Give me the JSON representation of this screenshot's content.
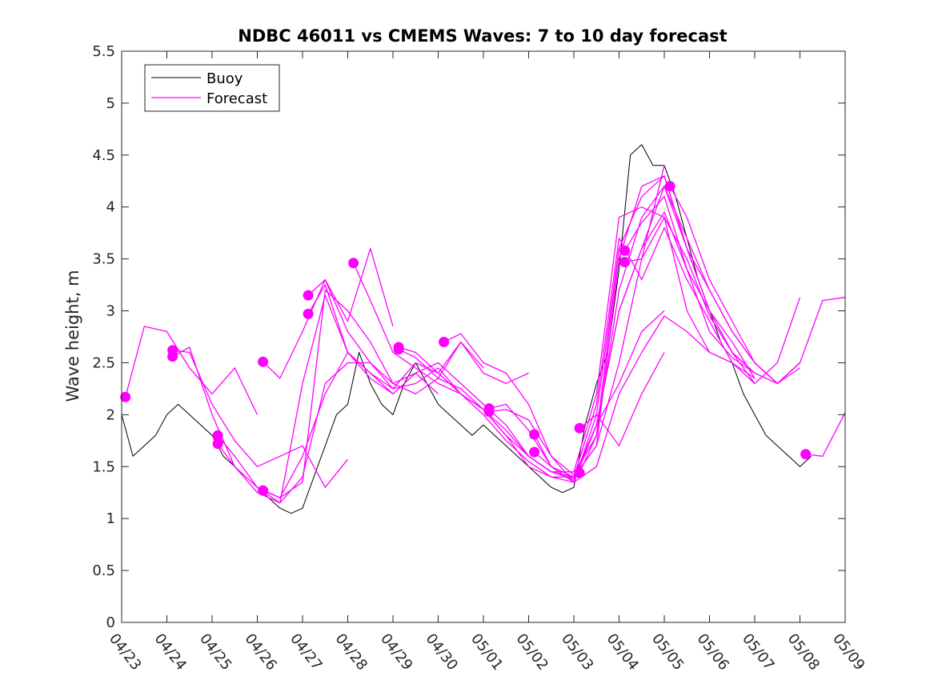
{
  "chart_data": {
    "type": "line",
    "title": "NDBC 46011 vs CMEMS Waves: 7 to 10 day forecast",
    "xlabel": "",
    "ylabel": "Wave height, m",
    "xlim": [
      "04/23",
      "05/09"
    ],
    "ylim": [
      0,
      5.5
    ],
    "grid": false,
    "legend_placement": "top-left",
    "x_tick_labels": [
      "04/23",
      "04/24",
      "04/25",
      "04/26",
      "04/27",
      "04/28",
      "04/29",
      "04/30",
      "05/01",
      "05/02",
      "05/03",
      "05/04",
      "05/05",
      "05/06",
      "05/07",
      "05/08",
      "05/09"
    ],
    "y_tick_labels": [
      "0",
      "0.5",
      "1",
      "1.5",
      "2",
      "2.5",
      "3",
      "3.5",
      "4",
      "4.5",
      "5",
      "5.5"
    ],
    "y_ticks": [
      0,
      0.5,
      1,
      1.5,
      2,
      2.5,
      3,
      3.5,
      4,
      4.5,
      5,
      5.5
    ],
    "colors": {
      "buoy": "#000000",
      "forecast": "#ff00ff"
    },
    "series": [
      {
        "name": "Buoy",
        "x": [
          "04/23 00:00",
          "04/23 06:00",
          "04/23 12:00",
          "04/23 18:00",
          "04/24 00:00",
          "04/24 06:00",
          "04/24 12:00",
          "04/24 18:00",
          "04/25 00:00",
          "04/25 06:00",
          "04/25 12:00",
          "04/25 18:00",
          "04/26 00:00",
          "04/26 06:00",
          "04/26 12:00",
          "04/26 18:00",
          "04/27 00:00",
          "04/27 06:00",
          "04/27 12:00",
          "04/27 18:00",
          "04/28 00:00",
          "04/28 06:00",
          "04/28 12:00",
          "04/28 18:00",
          "04/29 00:00",
          "04/29 06:00",
          "04/29 12:00",
          "04/29 18:00",
          "04/30 00:00",
          "04/30 06:00",
          "04/30 12:00",
          "04/30 18:00",
          "05/01 00:00",
          "05/01 06:00",
          "05/01 12:00",
          "05/01 18:00",
          "05/02 00:00",
          "05/02 06:00",
          "05/02 12:00",
          "05/02 18:00",
          "05/03 00:00",
          "05/03 06:00",
          "05/03 12:00",
          "05/03 18:00",
          "05/04 00:00",
          "05/04 06:00",
          "05/04 12:00",
          "05/04 18:00",
          "05/05 00:00",
          "05/05 06:00",
          "05/05 12:00",
          "05/05 18:00",
          "05/06 00:00",
          "05/06 06:00",
          "05/06 12:00",
          "05/06 18:00",
          "05/07 00:00",
          "05/07 06:00",
          "05/07 12:00",
          "05/07 18:00",
          "05/08 00:00",
          "05/08 06:00"
        ],
        "y": [
          2.0,
          1.6,
          1.7,
          1.8,
          2.0,
          2.1,
          2.0,
          1.9,
          1.8,
          1.6,
          1.5,
          1.4,
          1.3,
          1.2,
          1.1,
          1.05,
          1.1,
          1.4,
          1.7,
          2.0,
          2.1,
          2.6,
          2.3,
          2.1,
          2.0,
          2.3,
          2.5,
          2.3,
          2.1,
          2.0,
          1.9,
          1.8,
          1.9,
          1.8,
          1.7,
          1.6,
          1.5,
          1.4,
          1.3,
          1.25,
          1.3,
          1.9,
          2.3,
          2.6,
          3.4,
          4.5,
          4.6,
          4.4,
          4.4,
          4.1,
          3.7,
          3.3,
          3.0,
          2.7,
          2.5,
          2.2,
          2.0,
          1.8,
          1.7,
          1.6,
          1.5,
          1.6
        ]
      },
      {
        "name": "Forecast",
        "x": [
          "04/23 02:00",
          "04/23 12:00",
          "04/24 00:00",
          "04/24 12:00",
          "04/25 00:00",
          "04/25 12:00",
          "04/26 00:00"
        ],
        "y": [
          2.17,
          2.85,
          2.8,
          2.45,
          2.2,
          2.45,
          2.0
        ]
      },
      {
        "name": "",
        "x": [
          "04/24 03:00",
          "04/24 12:00",
          "04/25 00:00",
          "04/25 12:00",
          "04/26 00:00",
          "04/26 12:00",
          "04/27 00:00",
          "04/27 12:00",
          "04/28 00:00"
        ],
        "y": [
          2.62,
          2.6,
          2.1,
          1.75,
          1.5,
          1.6,
          1.7,
          1.3,
          1.57
        ]
      },
      {
        "name": "",
        "x": [
          "04/24 03:00",
          "04/24 12:00",
          "04/25 00:00",
          "04/25 12:00",
          "04/26 00:00",
          "04/26 12:00",
          "04/27 00:00",
          "04/27 12:00",
          "04/28 00:00",
          "04/28 12:00",
          "04/29 00:00"
        ],
        "y": [
          2.56,
          2.65,
          2.0,
          1.5,
          1.25,
          1.15,
          2.3,
          3.15,
          2.6,
          2.4,
          2.2
        ]
      },
      {
        "name": "",
        "x": [
          "04/25 03:00",
          "04/25 12:00",
          "04/26 00:00",
          "04/26 12:00",
          "04/27 00:00",
          "04/27 12:00",
          "04/28 00:00",
          "04/28 12:00",
          "04/29 00:00",
          "04/29 12:00",
          "04/30 00:00"
        ],
        "y": [
          1.8,
          1.6,
          1.3,
          1.15,
          1.4,
          2.3,
          2.5,
          2.5,
          2.3,
          2.4,
          2.2
        ]
      },
      {
        "name": "",
        "x": [
          "04/25 03:00",
          "04/25 12:00",
          "04/26 00:00",
          "04/26 12:00",
          "04/27 00:00",
          "04/27 12:00",
          "04/28 00:00",
          "04/28 12:00",
          "04/29 00:00",
          "04/29 12:00",
          "04/30 00:00",
          "04/30 12:00",
          "05/01 00:00"
        ],
        "y": [
          1.72,
          1.5,
          1.3,
          1.2,
          1.6,
          2.2,
          2.6,
          2.4,
          2.25,
          2.5,
          2.4,
          2.7,
          2.45
        ]
      },
      {
        "name": "",
        "x": [
          "04/26 03:00",
          "04/26 12:00",
          "04/27 00:00",
          "04/27 12:00",
          "04/28 00:00",
          "04/28 12:00",
          "04/29 00:00",
          "04/29 12:00",
          "04/30 00:00",
          "04/30 12:00",
          "05/01 00:00",
          "05/01 12:00",
          "05/02 00:00"
        ],
        "y": [
          1.27,
          1.2,
          1.35,
          3.2,
          3.0,
          2.7,
          2.3,
          2.2,
          2.35,
          2.7,
          2.4,
          2.3,
          2.4
        ]
      },
      {
        "name": "",
        "x": [
          "04/26 03:00",
          "04/26 12:00",
          "04/27 00:00",
          "04/27 12:00",
          "04/28 00:00",
          "04/28 12:00",
          "04/29 00:00"
        ],
        "y": [
          2.51,
          2.35,
          2.8,
          3.3,
          2.9,
          3.6,
          2.85
        ]
      },
      {
        "name": "",
        "x": [
          "04/27 03:00",
          "04/27 12:00",
          "04/28 00:00",
          "04/28 12:00",
          "04/29 00:00",
          "04/29 12:00",
          "04/30 00:00",
          "04/30 12:00",
          "05/01 00:00",
          "05/01 12:00",
          "05/02 00:00",
          "05/02 12:00",
          "05/03 00:00",
          "05/03 12:00",
          "05/04 00:00"
        ],
        "y": [
          3.15,
          3.3,
          2.8,
          2.5,
          2.25,
          2.3,
          2.45,
          2.2,
          2.05,
          1.8,
          1.5,
          1.4,
          1.35,
          2.0,
          3.6
        ]
      },
      {
        "name": "",
        "x": [
          "04/27 03:00",
          "04/27 12:00",
          "04/28 00:00",
          "04/28 12:00",
          "04/29 00:00",
          "04/29 12:00",
          "04/30 00:00",
          "04/30 12:00",
          "05/01 00:00",
          "05/01 12:00",
          "05/02 00:00",
          "05/02 12:00",
          "05/03 00:00",
          "05/03 12:00",
          "05/04 00:00",
          "05/04 12:00",
          "05/05 00:00"
        ],
        "y": [
          2.97,
          3.25,
          2.6,
          2.35,
          2.2,
          2.4,
          2.5,
          2.3,
          2.1,
          1.9,
          1.6,
          1.45,
          1.4,
          1.7,
          2.5,
          3.5,
          4.4
        ]
      },
      {
        "name": "",
        "x": [
          "04/28 03:00",
          "04/28 12:00",
          "04/29 00:00",
          "04/29 12:00",
          "04/30 00:00",
          "04/30 12:00",
          "05/01 00:00",
          "05/01 12:00",
          "05/02 00:00",
          "05/02 12:00",
          "05/03 00:00",
          "05/03 12:00",
          "05/04 00:00",
          "05/04 12:00",
          "05/05 00:00",
          "05/05 12:00",
          "05/06 00:00"
        ],
        "y": [
          3.46,
          3.1,
          2.6,
          2.45,
          2.3,
          2.2,
          2.05,
          1.85,
          1.6,
          1.45,
          1.45,
          2.2,
          3.9,
          4.0,
          3.9,
          3.0,
          2.6
        ]
      },
      {
        "name": "",
        "x": [
          "04/29 03:00",
          "04/29 12:00",
          "04/30 00:00",
          "04/30 12:00",
          "05/01 00:00",
          "05/01 12:00",
          "05/02 00:00",
          "05/02 12:00",
          "05/03 00:00",
          "05/03 12:00",
          "05/04 00:00",
          "05/04 12:00",
          "05/05 00:00",
          "05/05 12:00",
          "05/06 00:00",
          "05/06 12:00",
          "05/07 00:00"
        ],
        "y": [
          2.65,
          2.6,
          2.4,
          2.2,
          2.0,
          1.75,
          1.55,
          1.4,
          1.4,
          2.1,
          3.7,
          3.3,
          3.8,
          3.3,
          2.9,
          2.5,
          2.35
        ]
      },
      {
        "name": "",
        "x": [
          "04/29 03:00",
          "04/29 12:00",
          "04/30 00:00",
          "04/30 12:00",
          "05/01 00:00",
          "05/01 12:00",
          "05/02 00:00",
          "05/02 12:00",
          "05/03 00:00",
          "05/03 12:00",
          "05/04 00:00",
          "05/04 12:00",
          "05/05 00:00",
          "05/05 12:00",
          "05/06 00:00",
          "05/06 12:00",
          "05/07 00:00"
        ],
        "y": [
          2.63,
          2.55,
          2.35,
          2.25,
          2.05,
          1.8,
          1.6,
          1.45,
          1.38,
          1.9,
          3.0,
          3.6,
          3.95,
          3.4,
          2.8,
          2.55,
          2.4
        ]
      },
      {
        "name": "",
        "x": [
          "04/30 03:00",
          "04/30 12:00",
          "05/01 00:00",
          "05/01 12:00",
          "05/02 00:00",
          "05/02 12:00",
          "05/03 00:00",
          "05/03 12:00",
          "05/04 00:00",
          "05/04 12:00",
          "05/05 00:00",
          "05/05 12:00",
          "05/06 00:00",
          "05/06 12:00",
          "05/07 00:00",
          "05/07 12:00",
          "05/08 00:00"
        ],
        "y": [
          2.7,
          2.78,
          2.5,
          2.4,
          2.1,
          1.6,
          1.42,
          1.8,
          3.2,
          3.9,
          4.2,
          3.7,
          3.2,
          2.8,
          2.5,
          2.3,
          2.5
        ]
      },
      {
        "name": "",
        "x": [
          "05/01 03:00",
          "05/01 12:00",
          "05/02 00:00",
          "05/02 12:00",
          "05/03 00:00",
          "05/03 12:00",
          "05/04 00:00",
          "05/04 12:00",
          "05/05 00:00",
          "05/05 12:00",
          "05/06 00:00",
          "05/06 12:00",
          "05/07 00:00",
          "05/07 12:00",
          "05/08 00:00"
        ],
        "y": [
          2.06,
          2.1,
          1.85,
          1.5,
          1.4,
          1.7,
          3.5,
          4.2,
          4.3,
          3.6,
          3.0,
          2.6,
          2.4,
          2.3,
          2.45
        ]
      },
      {
        "name": "",
        "x": [
          "05/01 03:00",
          "05/01 12:00",
          "05/02 00:00",
          "05/02 12:00",
          "05/03 00:00",
          "05/03 12:00",
          "05/04 00:00",
          "05/04 12:00",
          "05/05 00:00"
        ],
        "y": [
          2.03,
          2.05,
          1.95,
          1.6,
          1.35,
          1.9,
          2.3,
          2.8,
          3.0
        ]
      },
      {
        "name": "",
        "x": [
          "05/02 03:00",
          "05/02 12:00",
          "05/03 00:00",
          "05/03 12:00",
          "05/04 00:00",
          "05/04 12:00",
          "05/05 00:00",
          "05/05 12:00",
          "05/06 00:00",
          "05/06 12:00",
          "05/07 00:00",
          "05/07 12:00",
          "05/08 00:00"
        ],
        "y": [
          1.81,
          1.5,
          1.4,
          1.9,
          3.0,
          3.6,
          4.2,
          3.6,
          3.2,
          2.8,
          2.5,
          2.3,
          2.5
        ]
      },
      {
        "name": "",
        "x": [
          "05/02 03:00",
          "05/02 12:00",
          "05/03 00:00",
          "05/03 12:00",
          "05/04 00:00",
          "05/04 12:00",
          "05/05 00:00",
          "05/05 12:00",
          "05/06 00:00",
          "05/06 12:00",
          "05/07 00:00"
        ],
        "y": [
          1.64,
          1.5,
          1.35,
          1.5,
          2.2,
          2.6,
          2.95,
          2.8,
          2.6,
          2.5,
          2.3
        ]
      },
      {
        "name": "",
        "x": [
          "05/03 03:00",
          "05/03 12:00",
          "05/04 00:00",
          "05/04 12:00",
          "05/05 00:00"
        ],
        "y": [
          1.87,
          2.0,
          1.7,
          2.2,
          2.6
        ]
      },
      {
        "name": "",
        "x": [
          "05/03 03:00",
          "05/03 12:00",
          "05/04 00:00",
          "05/04 12:00",
          "05/05 00:00",
          "05/05 12:00",
          "05/06 00:00",
          "05/06 12:00",
          "05/07 00:00",
          "05/07 12:00",
          "05/08 00:00"
        ],
        "y": [
          1.44,
          1.8,
          3.6,
          4.1,
          4.3,
          3.6,
          3.0,
          2.6,
          2.3,
          2.5,
          3.13
        ]
      },
      {
        "name": "",
        "x": [
          "05/04 03:00",
          "05/04 12:00",
          "05/05 00:00",
          "05/05 12:00",
          "05/06 00:00",
          "05/06 12:00",
          "05/07 00:00"
        ],
        "y": [
          3.58,
          3.85,
          4.1,
          3.4,
          3.0,
          2.7,
          2.35
        ]
      },
      {
        "name": "",
        "x": [
          "05/04 03:00",
          "05/04 12:00",
          "05/05 00:00",
          "05/05 12:00",
          "05/06 00:00",
          "05/06 12:00",
          "05/07 00:00"
        ],
        "y": [
          3.47,
          3.5,
          3.9,
          3.5,
          2.95,
          2.6,
          2.4
        ]
      },
      {
        "name": "",
        "x": [
          "05/05 03:00",
          "05/05 12:00",
          "05/06 00:00",
          "05/06 12:00",
          "05/07 00:00",
          "05/07 12:00",
          "05/08 00:00",
          "05/08 12:00",
          "05/09 00:00"
        ],
        "y": [
          4.2,
          3.9,
          3.3,
          2.9,
          2.5,
          2.3,
          2.5,
          3.1,
          3.13
        ]
      },
      {
        "name": "",
        "x": [
          "05/08 03:00",
          "05/08 12:00",
          "05/09 00:00"
        ],
        "y": [
          1.62,
          1.6,
          2.02
        ]
      }
    ],
    "markers": {
      "x": [
        "04/23 02:00",
        "04/24 03:00",
        "04/24 03:00",
        "04/25 03:00",
        "04/25 03:00",
        "04/26 03:00",
        "04/26 03:00",
        "04/27 03:00",
        "04/27 03:00",
        "04/28 03:00",
        "04/29 03:00",
        "04/29 03:00",
        "04/30 03:00",
        "05/01 03:00",
        "05/01 03:00",
        "05/02 03:00",
        "05/02 03:00",
        "05/03 03:00",
        "05/03 03:00",
        "05/04 03:00",
        "05/04 03:00",
        "05/05 03:00",
        "05/08 03:00"
      ],
      "y": [
        2.17,
        2.62,
        2.56,
        1.8,
        1.72,
        1.27,
        2.51,
        3.15,
        2.97,
        3.46,
        2.65,
        2.63,
        2.7,
        2.06,
        2.03,
        1.81,
        1.64,
        1.87,
        1.44,
        3.58,
        3.47,
        4.2,
        1.62
      ]
    }
  }
}
